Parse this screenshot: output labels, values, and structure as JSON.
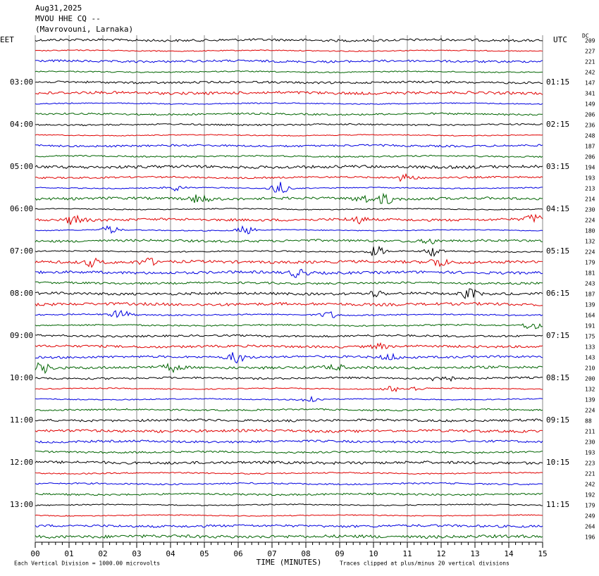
{
  "header": {
    "date": "Aug31,2025",
    "station": "MVOU HHE CQ --",
    "location": "(Mavrovouni, Larnaka)"
  },
  "left_axis": {
    "zone": "EET",
    "labels": [
      "03:00",
      "04:00",
      "05:00",
      "06:00",
      "07:00",
      "08:00",
      "09:00",
      "10:00",
      "11:00",
      "12:00",
      "13:00"
    ]
  },
  "right_axis": {
    "zone": "UTC",
    "labels": [
      "01:15",
      "02:15",
      "03:15",
      "04:15",
      "05:15",
      "06:15",
      "07:15",
      "08:15",
      "09:15",
      "10:15",
      "11:15"
    ]
  },
  "dc": {
    "label": "DC",
    "values": [
      209,
      227,
      221,
      242,
      147,
      341,
      149,
      206,
      236,
      248,
      187,
      206,
      194,
      193,
      213,
      214,
      230,
      224,
      180,
      132,
      224,
      179,
      181,
      243,
      187,
      139,
      164,
      191,
      175,
      133,
      143,
      210,
      200,
      132,
      139,
      224,
      88,
      211,
      230,
      193,
      223,
      221,
      242,
      192,
      179,
      249,
      264,
      196
    ]
  },
  "trace_colors": [
    "#000000",
    "#e00000",
    "#0000e0",
    "#006400"
  ],
  "x_axis": {
    "label": "TIME (MINUTES)",
    "xlim": [
      0,
      15
    ],
    "xticks": [
      {
        "value": 0,
        "label": "00"
      },
      {
        "value": 1,
        "label": "01"
      },
      {
        "value": 2,
        "label": "02"
      },
      {
        "value": 3,
        "label": "03"
      },
      {
        "value": 4,
        "label": "04"
      },
      {
        "value": 5,
        "label": "05"
      },
      {
        "value": 6,
        "label": "06"
      },
      {
        "value": 7,
        "label": "07"
      },
      {
        "value": 8,
        "label": "08"
      },
      {
        "value": 9,
        "label": "09"
      },
      {
        "value": 10,
        "label": "10"
      },
      {
        "value": 11,
        "label": "11"
      },
      {
        "value": 12,
        "label": "12"
      },
      {
        "value": 13,
        "label": "13"
      },
      {
        "value": 14,
        "label": "14"
      },
      {
        "value": 15,
        "label": "15"
      }
    ]
  },
  "footer": {
    "scale_note": "Each Vertical Division = 1000.00 microvolts",
    "clip_note": "Traces clipped at plus/minus 20 vertical divisions"
  }
}
